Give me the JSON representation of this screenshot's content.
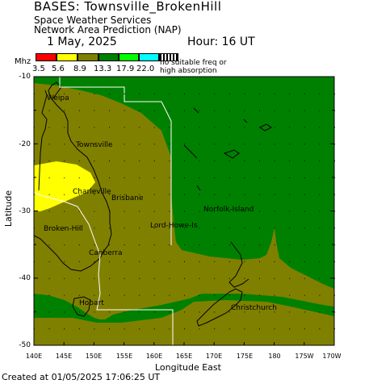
{
  "header": {
    "title": "BASES: Townsville_BrokenHill",
    "subtitle": "Space Weather Services",
    "product": "Network Area Prediction (NAP)",
    "date": "1 May, 2025",
    "hour": "Hour: 16 UT"
  },
  "legend": {
    "unit": "Mhz",
    "bins": [
      {
        "value": "3.5",
        "color": "#ff0000"
      },
      {
        "value": "5.6",
        "color": "#ffff00"
      },
      {
        "value": "8.9",
        "color": "#808000"
      },
      {
        "value": "13.3",
        "color": "#008000"
      },
      {
        "value": "17.9",
        "color": "#00ff00"
      },
      {
        "value": "22.0",
        "color": "#00ffff"
      }
    ],
    "no_freq_note_line1": "no suitable freq or",
    "no_freq_note_line2": "high absorption"
  },
  "axes": {
    "ylabel": "Latitude",
    "xlabel": "Longitude East",
    "yticks": [
      "-10",
      "-20",
      "-30",
      "-40",
      "-50"
    ],
    "xticks": [
      "140E",
      "145E",
      "150E",
      "155E",
      "160E",
      "165E",
      "170E",
      "175E",
      "180",
      "175W",
      "170W"
    ]
  },
  "cities": [
    {
      "name": "Weipa"
    },
    {
      "name": "Townsville"
    },
    {
      "name": "Charleville"
    },
    {
      "name": "Brisbane"
    },
    {
      "name": "Norfolk-Island"
    },
    {
      "name": "Lord-Howe-Is"
    },
    {
      "name": "Broken-Hill"
    },
    {
      "name": "Canberra"
    },
    {
      "name": "Hobart"
    },
    {
      "name": "Christchurch"
    }
  ],
  "footer": "Created at 01/05/2025 17:06:25 UT"
}
